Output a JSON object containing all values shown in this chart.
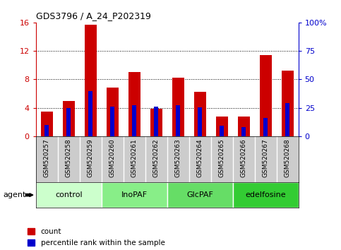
{
  "title": "GDS3796 / A_24_P202319",
  "samples": [
    "GSM520257",
    "GSM520258",
    "GSM520259",
    "GSM520260",
    "GSM520261",
    "GSM520262",
    "GSM520263",
    "GSM520264",
    "GSM520265",
    "GSM520266",
    "GSM520267",
    "GSM520268"
  ],
  "counts": [
    3.5,
    5.0,
    15.7,
    6.8,
    9.0,
    3.9,
    8.2,
    6.3,
    2.8,
    2.8,
    11.4,
    9.2
  ],
  "percentiles": [
    10.0,
    25.0,
    40.0,
    26.0,
    27.0,
    26.0,
    27.0,
    25.5,
    9.5,
    8.0,
    16.0,
    29.0
  ],
  "ylim_left": [
    0,
    16
  ],
  "ylim_right": [
    0,
    100
  ],
  "yticks_left": [
    0,
    4,
    8,
    12,
    16
  ],
  "yticks_right": [
    0,
    25,
    50,
    75,
    100
  ],
  "bar_color": "#cc0000",
  "pct_color": "#0000cc",
  "groups": [
    {
      "label": "control",
      "start": 0,
      "end": 3,
      "color": "#ccffcc"
    },
    {
      "label": "InoPAF",
      "start": 3,
      "end": 6,
      "color": "#88ee88"
    },
    {
      "label": "GlcPAF",
      "start": 6,
      "end": 9,
      "color": "#66dd66"
    },
    {
      "label": "edelfosine",
      "start": 9,
      "end": 12,
      "color": "#33cc33"
    }
  ],
  "agent_label": "agent",
  "legend_count": "count",
  "legend_pct": "percentile rank within the sample",
  "tick_label_fontsize": 6.5,
  "bar_width": 0.55,
  "pct_bar_width": 0.18,
  "bg_color": "#ffffff",
  "sample_bg": "#cccccc",
  "left_tick_color": "#cc0000",
  "right_tick_color": "#0000cc"
}
